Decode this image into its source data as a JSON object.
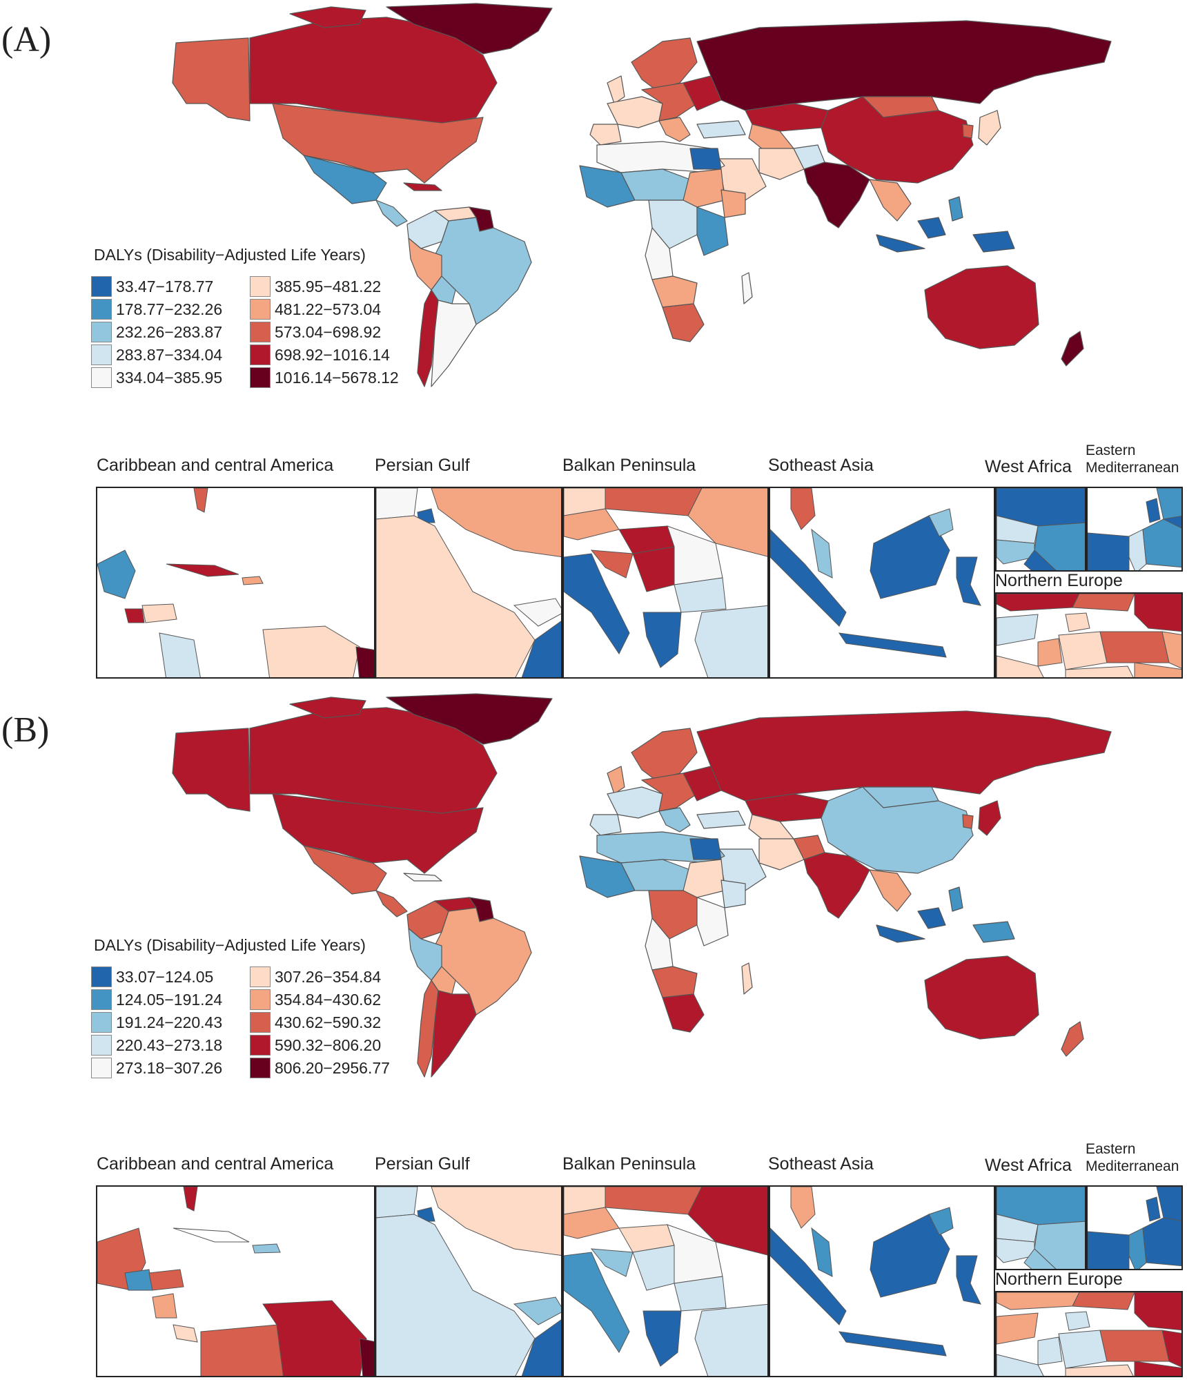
{
  "panels": [
    {
      "label": "(A)",
      "legend": {
        "title": "DALYs (Disability−Adjusted Life Years)",
        "items": [
          {
            "range": "33.47−178.77",
            "color": "#2166ac"
          },
          {
            "range": "178.77−232.26",
            "color": "#4393c3"
          },
          {
            "range": "232.26−283.87",
            "color": "#92c5de"
          },
          {
            "range": "283.87−334.04",
            "color": "#d1e5f0"
          },
          {
            "range": "334.04−385.95",
            "color": "#f7f7f7"
          },
          {
            "range": "385.95−481.22",
            "color": "#fddbc7"
          },
          {
            "range": "481.22−573.04",
            "color": "#f4a582"
          },
          {
            "range": "573.04−698.92",
            "color": "#d6604d"
          },
          {
            "range": "698.92−1016.14",
            "color": "#b2182b"
          },
          {
            "range": "1016.14−5678.12",
            "color": "#67001f"
          }
        ]
      },
      "insets": [
        {
          "title": "Caribbean and central America"
        },
        {
          "title": "Persian Gulf"
        },
        {
          "title": "Balkan Peninsula"
        },
        {
          "title": "Sotheast Asia"
        },
        {
          "title": "West Africa"
        },
        {
          "title": "Eastern\nMediterranean"
        },
        {
          "title": "Northern Europe"
        }
      ]
    },
    {
      "label": "(B)",
      "legend": {
        "title": "DALYs (Disability−Adjusted Life Years)",
        "items": [
          {
            "range": "33.07−124.05",
            "color": "#2166ac"
          },
          {
            "range": "124.05−191.24",
            "color": "#4393c3"
          },
          {
            "range": "191.24−220.43",
            "color": "#92c5de"
          },
          {
            "range": "220.43−273.18",
            "color": "#d1e5f0"
          },
          {
            "range": "273.18−307.26",
            "color": "#f7f7f7"
          },
          {
            "range": "307.26−354.84",
            "color": "#fddbc7"
          },
          {
            "range": "354.84−430.62",
            "color": "#f4a582"
          },
          {
            "range": "430.62−590.32",
            "color": "#d6604d"
          },
          {
            "range": "590.32−806.20",
            "color": "#b2182b"
          },
          {
            "range": "806.20−2956.77",
            "color": "#67001f"
          }
        ]
      },
      "insets": [
        {
          "title": "Caribbean and central America"
        },
        {
          "title": "Persian Gulf"
        },
        {
          "title": "Balkan Peninsula"
        },
        {
          "title": "Sotheast Asia"
        },
        {
          "title": "West Africa"
        },
        {
          "title": "Eastern\nMediterranean"
        },
        {
          "title": "Northern Europe"
        }
      ]
    }
  ]
}
